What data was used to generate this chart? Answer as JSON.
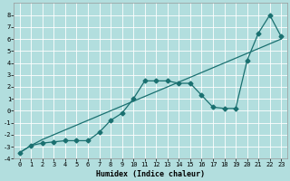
{
  "xlabel": "Humidex (Indice chaleur)",
  "ylabel": "",
  "bg_color": "#b2dede",
  "grid_color": "#ffffff",
  "line_color": "#1a7070",
  "xlim": [
    -0.5,
    23.5
  ],
  "ylim": [
    -4,
    9
  ],
  "yticks": [
    -4,
    -3,
    -2,
    -1,
    0,
    1,
    2,
    3,
    4,
    5,
    6,
    7,
    8
  ],
  "xticks": [
    0,
    1,
    2,
    3,
    4,
    5,
    6,
    7,
    8,
    9,
    10,
    11,
    12,
    13,
    14,
    15,
    16,
    17,
    18,
    19,
    20,
    21,
    22,
    23
  ],
  "data_x": [
    0,
    1,
    2,
    3,
    4,
    5,
    6,
    7,
    8,
    9,
    10,
    11,
    12,
    13,
    14,
    15,
    16,
    17,
    18,
    19,
    20,
    21,
    22,
    23
  ],
  "data_y_line1": [
    -3.5,
    -2.9,
    -2.7,
    -2.6,
    -2.5,
    -2.5,
    -2.5,
    -1.8,
    -0.8,
    -0.2,
    1.0,
    2.5,
    2.5,
    2.5,
    2.3,
    2.3,
    1.3,
    0.3,
    0.2,
    0.2,
    4.2,
    6.5,
    8.0,
    6.2
  ],
  "data_y_line2": [
    -3.5,
    -2.9,
    -2.4,
    -2.0,
    -1.6,
    -1.2,
    -0.8,
    -0.4,
    0.0,
    0.4,
    0.8,
    1.2,
    1.6,
    2.0,
    2.4,
    2.8,
    3.2,
    3.6,
    4.0,
    4.4,
    4.8,
    5.2,
    5.6,
    6.0
  ],
  "marker": "D",
  "markersize": 2.5,
  "linewidth": 0.9,
  "xlabel_fontsize": 6,
  "tick_fontsize": 5,
  "xlabel_fontfamily": "monospace",
  "tick_fontfamily": "monospace"
}
